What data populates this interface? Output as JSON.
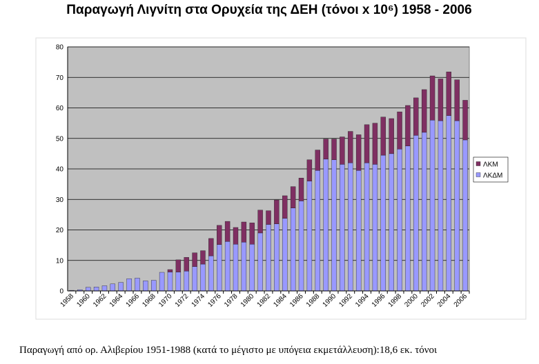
{
  "chart_data": {
    "type": "bar",
    "stacked": true,
    "title": "Παραγωγή Λιγνίτη στα Ορυχεία της ΔΕΗ (τόνοι x 10⁶) 1958 - 2006",
    "note": "Παραγωγή από ορ. Αλιβερίου 1951-1988 (κατά το μέγιστο με υπόγεια εκμετάλλευση):18,6 εκ. τόνοι",
    "categories": [
      "1958",
      null,
      "1960",
      null,
      "1962",
      null,
      "1964",
      null,
      "1966",
      null,
      "1968",
      null,
      "1970",
      null,
      "1972",
      null,
      "1974",
      null,
      "1976",
      null,
      "1978",
      null,
      "1980",
      null,
      "1982",
      null,
      "1984",
      null,
      "1986",
      null,
      "1988",
      null,
      "1990",
      null,
      "1992",
      null,
      "1994",
      null,
      "1996",
      null,
      "1998",
      null,
      "2000",
      null,
      "2002",
      null,
      "2004",
      null,
      "2006"
    ],
    "series": [
      {
        "name": "ΛΚΜ",
        "color": "#7f2f62",
        "values": [
          0,
          0,
          0,
          0,
          0,
          0,
          0,
          0,
          0,
          0,
          0,
          0,
          0.8,
          4.0,
          4.5,
          4.5,
          4.4,
          5.7,
          6.3,
          6.6,
          5.5,
          6.6,
          7.0,
          7.5,
          4.5,
          7.8,
          7.4,
          7.0,
          7.5,
          7.0,
          6.7,
          6.6,
          6.8,
          9.0,
          10.3,
          11.7,
          12.5,
          13.5,
          12.5,
          11.5,
          12.2,
          13.3,
          12.3,
          14.0,
          14.5,
          13.7,
          14.3,
          13.4,
          13.0
        ]
      },
      {
        "name": "ΛΚΔΜ",
        "color": "#9999ff",
        "values": [
          0.2,
          0.4,
          1.2,
          1.3,
          1.7,
          2.3,
          2.8,
          4.0,
          4.2,
          3.3,
          3.5,
          6.1,
          6.2,
          6.2,
          6.5,
          8.0,
          8.8,
          11.5,
          15.2,
          16.2,
          15.3,
          16.0,
          15.3,
          19.0,
          21.8,
          22.0,
          23.8,
          27.2,
          29.5,
          36.0,
          39.5,
          43.2,
          43.0,
          41.5,
          42.0,
          39.5,
          42.0,
          41.5,
          44.5,
          45.0,
          46.5,
          47.5,
          51.0,
          52.0,
          56.0,
          55.8,
          57.5,
          55.8,
          49.5
        ]
      }
    ],
    "ylim": [
      0,
      80
    ],
    "yticks": [
      0,
      10,
      20,
      30,
      40,
      50,
      60,
      70,
      80
    ],
    "grid": true,
    "legend": "right"
  }
}
